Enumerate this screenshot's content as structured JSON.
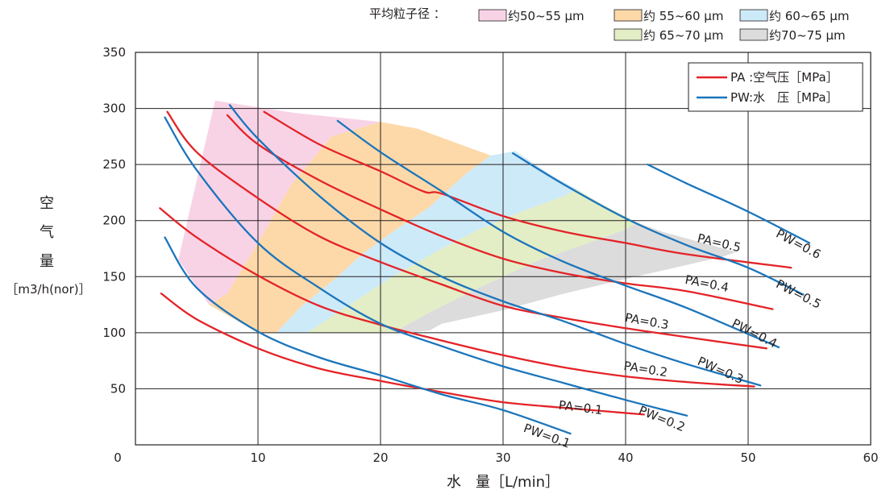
{
  "chart_data": {
    "type": "line",
    "xlabel": "水　量［L/min］",
    "ylabel_chars": [
      "空",
      "气",
      "量"
    ],
    "ylabel_unit": "［m3/h(nor)］",
    "xlim": [
      0,
      60
    ],
    "ylim": [
      0,
      350
    ],
    "x_ticks": [
      10,
      20,
      30,
      40,
      50,
      60
    ],
    "y_ticks": [
      50,
      100,
      150,
      200,
      250,
      300,
      350
    ],
    "origin_label": "0",
    "grid": true,
    "region_legend": {
      "title": "平均粒子径 ：",
      "items": [
        {
          "label": "约50~55 μm",
          "color": "#f8d3e6"
        },
        {
          "label": "约 55~60 μm",
          "color": "#fdd9a9"
        },
        {
          "label": "约 60~65 μm",
          "color": "#cdeaf8"
        },
        {
          "label": "约 65~70 μm",
          "color": "#e3edc6"
        },
        {
          "label": "约70~75 μm",
          "color": "#dcdcdc"
        }
      ]
    },
    "line_legend": {
      "placement": "top-right",
      "items": [
        {
          "label": "PA :空气压［MPa］",
          "color": "#e42327"
        },
        {
          "label": "PW:水　压［MPa］",
          "color": "#1b75bb"
        }
      ]
    },
    "regions": [
      {
        "name": "约50~55 μm",
        "color": "#f8d3e6",
        "polygon": [
          [
            3.5,
            165
          ],
          [
            6.5,
            307
          ],
          [
            13,
            296
          ],
          [
            20,
            288
          ],
          [
            16,
            275
          ],
          [
            12.7,
            232
          ],
          [
            10,
            180
          ],
          [
            7.5,
            135
          ],
          [
            6,
            125
          ]
        ]
      },
      {
        "name": "约 55~60 μm",
        "color": "#fdd9a9",
        "polygon": [
          [
            6,
            125
          ],
          [
            7.5,
            135
          ],
          [
            10,
            180
          ],
          [
            12.7,
            232
          ],
          [
            16,
            275
          ],
          [
            20,
            288
          ],
          [
            23,
            282
          ],
          [
            26.5,
            268
          ],
          [
            29,
            258
          ],
          [
            27,
            242
          ],
          [
            24,
            212
          ],
          [
            21,
            190
          ],
          [
            18.5,
            170
          ],
          [
            16.5,
            150
          ],
          [
            13.5,
            123
          ],
          [
            11.5,
            100
          ],
          [
            10,
            100
          ]
        ]
      },
      {
        "name": "约 60~65 μm",
        "color": "#cdeaf8",
        "polygon": [
          [
            11.5,
            100
          ],
          [
            13.5,
            123
          ],
          [
            16.5,
            150
          ],
          [
            18.5,
            170
          ],
          [
            21,
            190
          ],
          [
            24,
            212
          ],
          [
            27,
            242
          ],
          [
            29,
            258
          ],
          [
            31,
            262
          ],
          [
            34,
            240
          ],
          [
            36,
            228
          ],
          [
            35,
            222
          ],
          [
            32,
            210
          ],
          [
            28,
            192
          ],
          [
            25,
            175
          ],
          [
            21,
            150
          ],
          [
            17.5,
            125
          ],
          [
            14,
            100
          ]
        ]
      },
      {
        "name": "约 65~70 μm",
        "color": "#e3edc6",
        "polygon": [
          [
            14,
            100
          ],
          [
            17.5,
            125
          ],
          [
            21,
            150
          ],
          [
            25,
            175
          ],
          [
            28,
            192
          ],
          [
            32,
            210
          ],
          [
            35,
            222
          ],
          [
            36,
            228
          ],
          [
            38,
            215
          ],
          [
            41,
            198
          ],
          [
            40,
            192
          ],
          [
            37,
            180
          ],
          [
            33,
            165
          ],
          [
            28,
            140
          ],
          [
            24,
            118
          ],
          [
            21,
            100
          ]
        ]
      },
      {
        "name": "约70~75 μm",
        "color": "#dcdcdc",
        "polygon": [
          [
            21,
            100
          ],
          [
            24,
            118
          ],
          [
            28,
            140
          ],
          [
            33,
            165
          ],
          [
            37,
            180
          ],
          [
            40,
            192
          ],
          [
            41,
            198
          ],
          [
            43,
            190
          ],
          [
            49,
            172
          ],
          [
            48,
            168
          ],
          [
            44,
            158
          ],
          [
            40,
            148
          ],
          [
            35,
            135
          ],
          [
            30,
            120
          ],
          [
            25,
            108
          ],
          [
            24,
            102
          ],
          [
            22,
            100
          ]
        ]
      }
    ],
    "series": [
      {
        "name": "PA=0.1",
        "color": "#e42327",
        "points": [
          [
            2.1,
            135
          ],
          [
            5,
            112
          ],
          [
            10,
            86
          ],
          [
            15,
            68
          ],
          [
            20,
            57
          ],
          [
            25,
            47
          ],
          [
            30,
            38
          ],
          [
            35,
            33
          ],
          [
            41.5,
            27
          ]
        ]
      },
      {
        "name": "PA=0.2",
        "color": "#e42327",
        "points": [
          [
            2.0,
            211
          ],
          [
            5,
            185
          ],
          [
            10,
            151
          ],
          [
            15,
            124
          ],
          [
            20,
            107
          ],
          [
            25,
            93
          ],
          [
            30,
            80
          ],
          [
            35,
            69
          ],
          [
            40,
            61
          ],
          [
            45,
            56
          ],
          [
            50.5,
            52
          ]
        ]
      },
      {
        "name": "PA=0.3",
        "color": "#e42327",
        "points": [
          [
            2.6,
            297
          ],
          [
            5,
            261
          ],
          [
            10,
            220
          ],
          [
            15,
            186
          ],
          [
            20,
            163
          ],
          [
            25,
            143
          ],
          [
            30,
            124
          ],
          [
            35,
            113
          ],
          [
            40,
            104
          ],
          [
            45,
            96
          ],
          [
            51.5,
            86
          ]
        ]
      },
      {
        "name": "PA=0.4",
        "color": "#e42327",
        "points": [
          [
            7.5,
            294
          ],
          [
            10,
            268
          ],
          [
            15,
            236
          ],
          [
            20,
            210
          ],
          [
            25,
            186
          ],
          [
            30,
            166
          ],
          [
            35,
            153
          ],
          [
            40,
            144
          ],
          [
            45,
            137
          ],
          [
            52,
            121
          ]
        ]
      },
      {
        "name": "PA=0.5",
        "color": "#e42327",
        "points": [
          [
            10.5,
            297
          ],
          [
            15,
            268
          ],
          [
            20,
            244
          ],
          [
            23.5,
            226
          ],
          [
            25,
            224
          ],
          [
            30,
            204
          ],
          [
            35,
            190
          ],
          [
            40,
            180
          ],
          [
            45,
            170
          ],
          [
            53.5,
            158
          ]
        ]
      },
      {
        "name": "PW=0.1",
        "color": "#1b75bb",
        "points": [
          [
            2.4,
            185
          ],
          [
            5,
            140
          ],
          [
            10,
            101
          ],
          [
            15,
            78
          ],
          [
            20,
            62
          ],
          [
            25,
            45
          ],
          [
            30,
            31
          ],
          [
            35.5,
            10
          ]
        ]
      },
      {
        "name": "PW=0.2",
        "color": "#1b75bb",
        "points": [
          [
            2.4,
            292
          ],
          [
            5,
            245
          ],
          [
            10,
            180
          ],
          [
            15,
            140
          ],
          [
            20,
            108
          ],
          [
            25,
            88
          ],
          [
            30,
            70
          ],
          [
            35,
            55
          ],
          [
            40,
            40
          ],
          [
            45,
            26
          ]
        ]
      },
      {
        "name": "PW=0.3",
        "color": "#1b75bb",
        "points": [
          [
            7.7,
            303
          ],
          [
            10,
            273
          ],
          [
            15,
            222
          ],
          [
            20,
            180
          ],
          [
            25,
            150
          ],
          [
            30,
            128
          ],
          [
            35,
            110
          ],
          [
            40,
            90
          ],
          [
            45,
            72
          ],
          [
            51,
            53
          ]
        ]
      },
      {
        "name": "PW=0.4",
        "color": "#1b75bb",
        "points": [
          [
            16.5,
            289
          ],
          [
            20,
            261
          ],
          [
            25,
            226
          ],
          [
            30,
            190
          ],
          [
            35,
            163
          ],
          [
            40,
            142
          ],
          [
            45,
            122
          ],
          [
            52.5,
            87
          ]
        ]
      },
      {
        "name": "PW=0.5",
        "color": "#1b75bb",
        "points": [
          [
            30.8,
            260
          ],
          [
            35,
            232
          ],
          [
            40,
            202
          ],
          [
            45,
            178
          ],
          [
            50,
            158
          ],
          [
            54.5,
            134
          ]
        ]
      },
      {
        "name": "PW=0.6",
        "color": "#1b75bb",
        "points": [
          [
            41.8,
            250
          ],
          [
            45,
            233
          ],
          [
            50,
            208
          ],
          [
            55,
            180
          ]
        ]
      }
    ],
    "annotations": [
      {
        "text": "PA=0.1",
        "x": 34.5,
        "y": 32,
        "angle": 7
      },
      {
        "text": "PA=0.2",
        "x": 39.8,
        "y": 67,
        "angle": 9
      },
      {
        "text": "PA=0.3",
        "x": 39.9,
        "y": 110,
        "angle": 10
      },
      {
        "text": "PA=0.4",
        "x": 44.8,
        "y": 144,
        "angle": 11
      },
      {
        "text": "PA=0.5",
        "x": 45.8,
        "y": 181,
        "angle": 13
      },
      {
        "text": "PW=0.1",
        "x": 31.6,
        "y": 12,
        "angle": 20
      },
      {
        "text": "PW=0.2",
        "x": 41,
        "y": 28,
        "angle": 22
      },
      {
        "text": "PW=0.3",
        "x": 45.8,
        "y": 72,
        "angle": 24
      },
      {
        "text": "PW=0.4",
        "x": 48.6,
        "y": 106,
        "angle": 27
      },
      {
        "text": "PW=0.5",
        "x": 52.2,
        "y": 141,
        "angle": 27
      },
      {
        "text": "PW=0.6",
        "x": 52.2,
        "y": 186,
        "angle": 28
      }
    ]
  }
}
